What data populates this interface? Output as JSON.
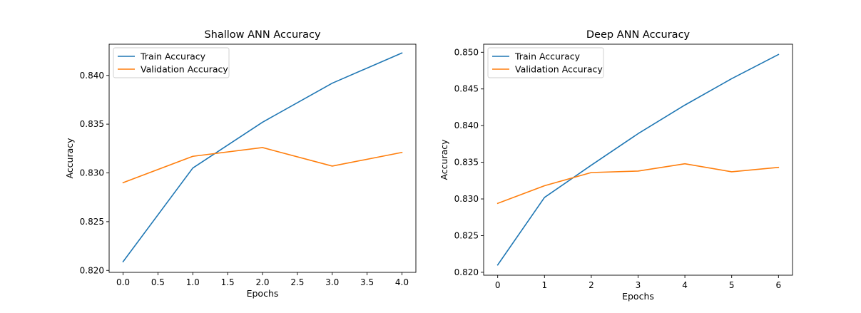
{
  "chart_data": [
    {
      "type": "line",
      "title": "Shallow ANN Accuracy",
      "xlabel": "Epochs",
      "ylabel": "Accuracy",
      "x": [
        0,
        1,
        2,
        3,
        4
      ],
      "xlim": [
        -0.2,
        4.2
      ],
      "ylim": [
        0.8198,
        0.8432
      ],
      "xticks": [
        0.0,
        0.5,
        1.0,
        1.5,
        2.0,
        2.5,
        3.0,
        3.5,
        4.0
      ],
      "xtick_labels": [
        "0.0",
        "0.5",
        "1.0",
        "1.5",
        "2.0",
        "2.5",
        "3.0",
        "3.5",
        "4.0"
      ],
      "yticks": [
        0.82,
        0.825,
        0.83,
        0.835,
        0.84
      ],
      "ytick_labels": [
        "0.820",
        "0.825",
        "0.830",
        "0.835",
        "0.840"
      ],
      "legend": "top-left",
      "grid": false,
      "series": [
        {
          "name": "Train Accuracy",
          "color": "#1f77b4",
          "values": [
            0.8209,
            0.8305,
            0.8352,
            0.8392,
            0.8423
          ]
        },
        {
          "name": "Validation Accuracy",
          "color": "#ff7f0e",
          "values": [
            0.829,
            0.8317,
            0.8326,
            0.8307,
            0.8321
          ]
        }
      ]
    },
    {
      "type": "line",
      "title": "Deep ANN Accuracy",
      "xlabel": "Epochs",
      "ylabel": "Accuracy",
      "x": [
        0,
        1,
        2,
        3,
        4,
        5,
        6
      ],
      "xlim": [
        -0.3,
        6.3
      ],
      "ylim": [
        0.8196,
        0.8511
      ],
      "xticks": [
        0,
        1,
        2,
        3,
        4,
        5,
        6
      ],
      "xtick_labels": [
        "0",
        "1",
        "2",
        "3",
        "4",
        "5",
        "6"
      ],
      "yticks": [
        0.82,
        0.825,
        0.83,
        0.835,
        0.84,
        0.845,
        0.85
      ],
      "ytick_labels": [
        "0.820",
        "0.825",
        "0.830",
        "0.835",
        "0.840",
        "0.845",
        "0.850"
      ],
      "legend": "top-left",
      "grid": false,
      "series": [
        {
          "name": "Train Accuracy",
          "color": "#1f77b4",
          "values": [
            0.821,
            0.8302,
            0.8346,
            0.8389,
            0.8428,
            0.8464,
            0.8497
          ]
        },
        {
          "name": "Validation Accuracy",
          "color": "#ff7f0e",
          "values": [
            0.8294,
            0.8318,
            0.8336,
            0.8338,
            0.8348,
            0.8337,
            0.8343
          ]
        }
      ]
    }
  ]
}
